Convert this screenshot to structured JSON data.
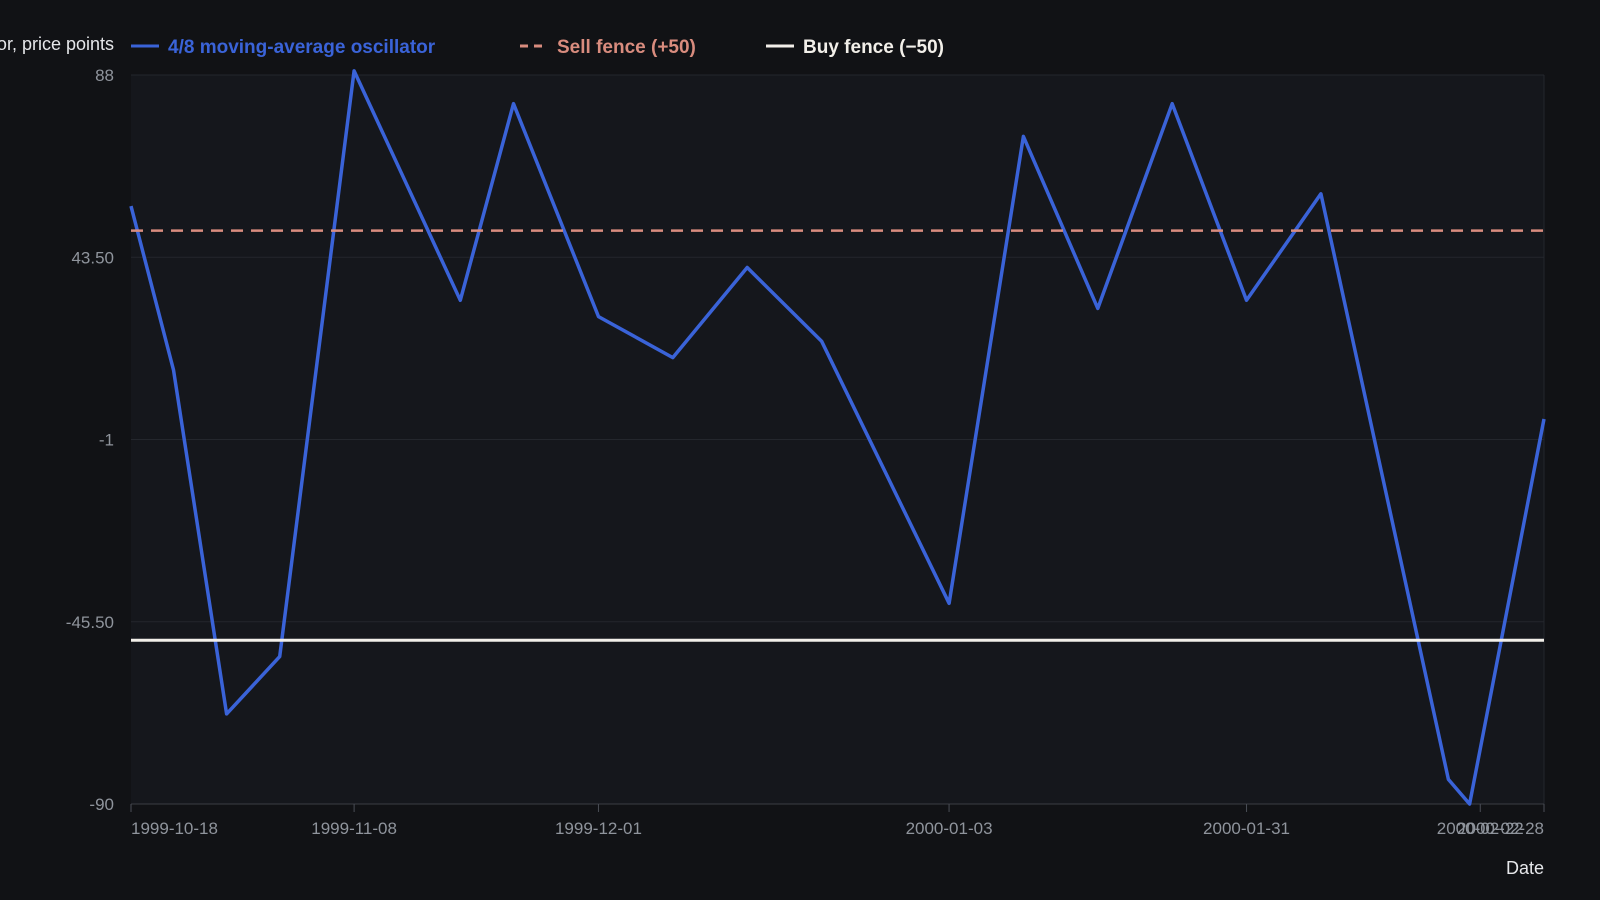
{
  "chart_data": {
    "type": "line",
    "title": "",
    "xlabel": "Date",
    "ylabel": "Oscillator, price points",
    "ylim": [
      -90,
      88
    ],
    "xlim": [
      "1999-10-18",
      "2000-02-28"
    ],
    "y_ticks": [
      "88",
      "43.50",
      "-1",
      "-45.50",
      "-90"
    ],
    "y_tick_values": [
      88,
      43.5,
      -1,
      -45.5,
      -90
    ],
    "x_ticks": [
      "1999-10-18",
      "1999-11-08",
      "1999-12-01",
      "2000-01-03",
      "2000-01-31",
      "2000-02-22",
      "2000-02-28"
    ],
    "grid": "horizontal",
    "legend_position": "top",
    "legend": [
      {
        "label": "4/8 moving-average oscillator",
        "color": "#3a63d8",
        "style": "solid"
      },
      {
        "label": "Sell fence (+50)",
        "color": "#d98c7e",
        "style": "dashed"
      },
      {
        "label": "Buy fence (−50)",
        "color": "#f2efe9",
        "style": "solid"
      }
    ],
    "series": [
      {
        "name": "4/8 moving-average oscillator",
        "color": "#3a63d8",
        "x": [
          "1999-10-18",
          "1999-10-22",
          "1999-10-27",
          "1999-11-01",
          "1999-11-08",
          "1999-11-18",
          "1999-11-23",
          "1999-12-01",
          "1999-12-08",
          "1999-12-15",
          "1999-12-22",
          "2000-01-03",
          "2000-01-10",
          "2000-01-17",
          "2000-01-24",
          "2000-01-31",
          "2000-02-07",
          "2000-02-19",
          "2000-02-21",
          "2000-02-28"
        ],
        "y": [
          56,
          16,
          -68,
          -54,
          89,
          33,
          81,
          29,
          19,
          41,
          23,
          -41,
          73,
          31,
          81,
          33,
          59,
          -84,
          -90,
          4
        ]
      },
      {
        "name": "Sell fence (+50)",
        "color": "#d98c7e",
        "x": [
          "1999-10-18",
          "2000-02-28"
        ],
        "y": [
          50,
          50
        ]
      },
      {
        "name": "Buy fence (−50)",
        "color": "#f2efe9",
        "x": [
          "1999-10-18",
          "2000-02-28"
        ],
        "y": [
          -50,
          -50
        ]
      }
    ]
  }
}
